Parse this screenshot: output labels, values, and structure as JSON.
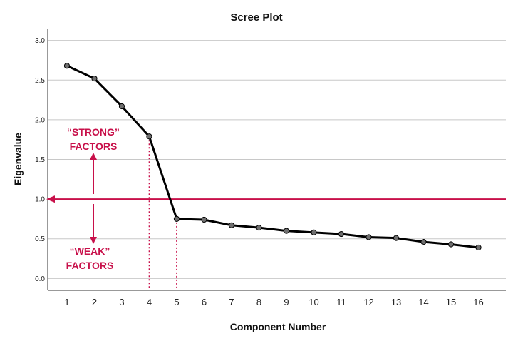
{
  "chart_data": {
    "type": "line",
    "title": "Scree Plot",
    "xlabel": "Component Number",
    "ylabel": "Eigenvalue",
    "x": [
      1,
      2,
      3,
      4,
      5,
      6,
      7,
      8,
      9,
      10,
      11,
      12,
      13,
      14,
      15,
      16
    ],
    "series": [
      {
        "values": [
          2.68,
          2.52,
          2.17,
          1.79,
          0.75,
          0.74,
          0.67,
          0.64,
          0.6,
          0.58,
          0.56,
          0.52,
          0.51,
          0.46,
          0.43,
          0.39
        ]
      }
    ],
    "x_ticks": [
      "1",
      "2",
      "3",
      "4",
      "5",
      "6",
      "7",
      "8",
      "9",
      "10",
      "11",
      "12",
      "13",
      "14",
      "15",
      "16"
    ],
    "y_ticks": [
      "0.0",
      "0.5",
      "1.0",
      "1.5",
      "2.0",
      "2.5",
      "3.0"
    ],
    "xlim": [
      0.3,
      17.0
    ],
    "ylim": [
      -0.15,
      3.15
    ],
    "grid": "horizontal",
    "reference_line": {
      "y": 1.0
    },
    "dotted_guides_at_x": [
      4,
      5
    ],
    "annotations": {
      "strong_line1": "“STRONG”",
      "strong_line2": "FACTORS",
      "weak_line1": "“WEAK”",
      "weak_line2": "FACTORS"
    },
    "colors": {
      "line": "#000000",
      "marker_fill": "#6f6f6f",
      "accent": "#c8104a",
      "grid": "#c8c8c8",
      "axis": "#333333"
    }
  }
}
